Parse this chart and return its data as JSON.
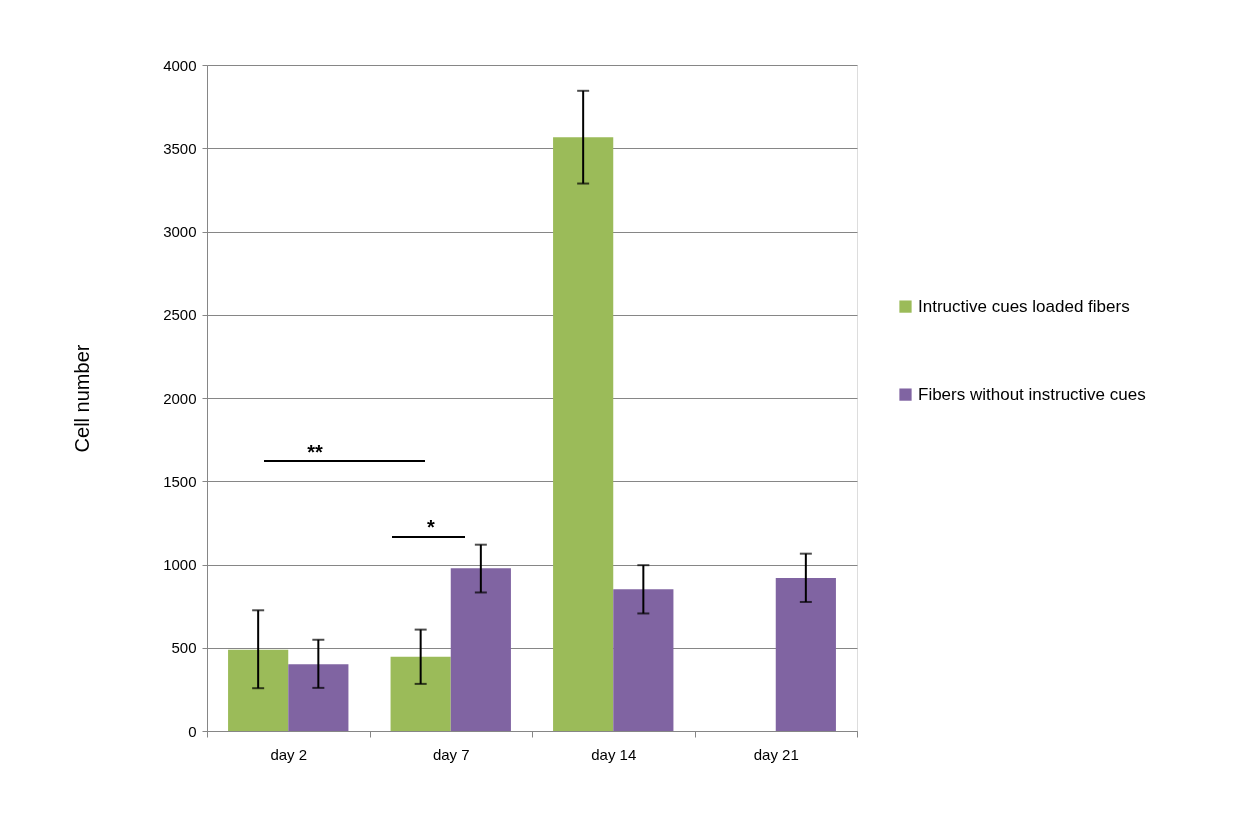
{
  "chart_data": {
    "type": "bar",
    "ylabel": "Cell number",
    "categories": [
      "day 2",
      "day 7",
      "day 14",
      "day 21"
    ],
    "series": [
      {
        "name": "Intructive cues loaded fibers",
        "color": "#9bbb59",
        "values": [
          488,
          446,
          3566,
          null
        ],
        "errors": [
          [
            257,
            725
          ],
          [
            283,
            609
          ],
          [
            3288,
            3845
          ],
          null
        ]
      },
      {
        "name": "Fibers without instructive cues",
        "color": "#8064a2",
        "values": [
          401,
          977,
          851,
          919
        ],
        "errors": [
          [
            259,
            548
          ],
          [
            832,
            1119
          ],
          [
            706,
            996
          ],
          [
            775,
            1065
          ]
        ]
      }
    ],
    "ylim": [
      0,
      4000
    ],
    "yticks": [
      0,
      500,
      1000,
      1500,
      2000,
      2500,
      3000,
      3500,
      4000
    ],
    "grid": "y",
    "legend": "right",
    "annotations": [
      "**",
      "*"
    ]
  }
}
